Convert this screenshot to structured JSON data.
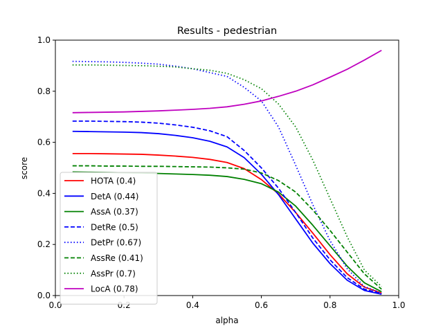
{
  "chart_data": {
    "type": "line",
    "title": "Results - pedestrian",
    "xlabel": "alpha",
    "ylabel": "score",
    "xlim": [
      0.0,
      1.0
    ],
    "ylim": [
      0.0,
      1.0
    ],
    "xticks": [
      "0.0",
      "0.2",
      "0.4",
      "0.6",
      "0.8",
      "1.0"
    ],
    "yticks": [
      "0.0",
      "0.2",
      "0.4",
      "0.6",
      "0.8",
      "1.0"
    ],
    "grid": false,
    "legend_position": "lower-left",
    "x": [
      0.05,
      0.1,
      0.15,
      0.2,
      0.25,
      0.3,
      0.35,
      0.4,
      0.45,
      0.5,
      0.55,
      0.6,
      0.65,
      0.7,
      0.75,
      0.8,
      0.85,
      0.9,
      0.95
    ],
    "series": [
      {
        "name": "HOTA (0.4)",
        "color": "#ff0000",
        "dash": "solid",
        "values": [
          0.556,
          0.556,
          0.555,
          0.554,
          0.553,
          0.55,
          0.546,
          0.541,
          0.533,
          0.521,
          0.497,
          0.454,
          0.398,
          0.325,
          0.244,
          0.16,
          0.085,
          0.033,
          0.01
        ]
      },
      {
        "name": "DetA (0.44)",
        "color": "#0000ff",
        "dash": "solid",
        "values": [
          0.643,
          0.642,
          0.641,
          0.64,
          0.638,
          0.634,
          0.627,
          0.618,
          0.604,
          0.582,
          0.54,
          0.475,
          0.395,
          0.3,
          0.205,
          0.125,
          0.06,
          0.02,
          0.005
        ]
      },
      {
        "name": "AssA (0.37)",
        "color": "#008000",
        "dash": "solid",
        "values": [
          0.484,
          0.483,
          0.482,
          0.481,
          0.48,
          0.478,
          0.476,
          0.474,
          0.471,
          0.466,
          0.455,
          0.438,
          0.405,
          0.35,
          0.275,
          0.195,
          0.115,
          0.05,
          0.015
        ]
      },
      {
        "name": "DetRe (0.5)",
        "color": "#0000ff",
        "dash": "dashed",
        "values": [
          0.683,
          0.683,
          0.682,
          0.681,
          0.679,
          0.675,
          0.668,
          0.659,
          0.645,
          0.622,
          0.568,
          0.5,
          0.42,
          0.325,
          0.225,
          0.14,
          0.07,
          0.025,
          0.007
        ]
      },
      {
        "name": "DetPr (0.67)",
        "color": "#0000ff",
        "dash": "dotted",
        "values": [
          0.917,
          0.916,
          0.915,
          0.913,
          0.91,
          0.906,
          0.898,
          0.888,
          0.873,
          0.858,
          0.815,
          0.762,
          0.66,
          0.51,
          0.355,
          0.215,
          0.105,
          0.035,
          0.01
        ]
      },
      {
        "name": "AssRe (0.41)",
        "color": "#008000",
        "dash": "dashed",
        "values": [
          0.508,
          0.508,
          0.507,
          0.507,
          0.506,
          0.506,
          0.505,
          0.504,
          0.503,
          0.5,
          0.495,
          0.48,
          0.45,
          0.405,
          0.335,
          0.255,
          0.17,
          0.085,
          0.025
        ]
      },
      {
        "name": "AssPr (0.7)",
        "color": "#008000",
        "dash": "dotted",
        "values": [
          0.903,
          0.903,
          0.902,
          0.901,
          0.9,
          0.898,
          0.895,
          0.888,
          0.882,
          0.87,
          0.845,
          0.81,
          0.75,
          0.66,
          0.53,
          0.38,
          0.23,
          0.1,
          0.035
        ]
      },
      {
        "name": "LocA (0.78)",
        "color": "#bf00bf",
        "dash": "solid",
        "values": [
          0.716,
          0.717,
          0.718,
          0.719,
          0.721,
          0.723,
          0.726,
          0.729,
          0.733,
          0.739,
          0.749,
          0.762,
          0.78,
          0.8,
          0.825,
          0.855,
          0.886,
          0.922,
          0.96
        ]
      }
    ]
  }
}
